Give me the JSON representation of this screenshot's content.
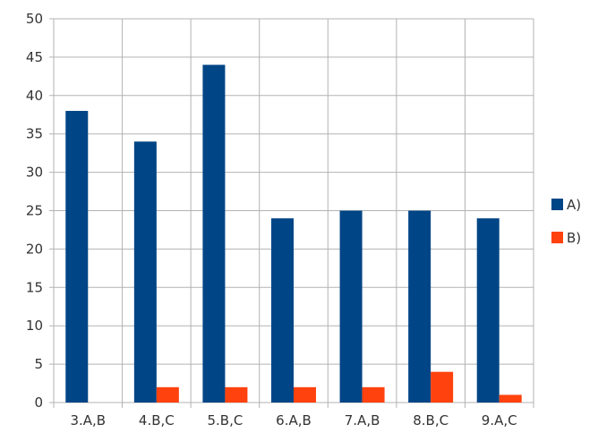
{
  "chart_data": {
    "type": "bar",
    "categories": [
      "3.A,B",
      "4.B,C",
      "5.B,C",
      "6.A,B",
      "7.A,B",
      "8.B,C",
      "9.A,C"
    ],
    "series": [
      {
        "name": "A)",
        "values": [
          38,
          34,
          44,
          24,
          25,
          25,
          24
        ],
        "color": "#004586"
      },
      {
        "name": "B)",
        "values": [
          0,
          2,
          2,
          2,
          2,
          4,
          1
        ],
        "color": "#ff420e"
      }
    ],
    "title": "",
    "xlabel": "",
    "ylabel": "",
    "ylim": [
      0,
      50
    ],
    "yticks": [
      0,
      5,
      10,
      15,
      20,
      25,
      30,
      35,
      40,
      45,
      50
    ],
    "grid": true,
    "legend": "right"
  }
}
